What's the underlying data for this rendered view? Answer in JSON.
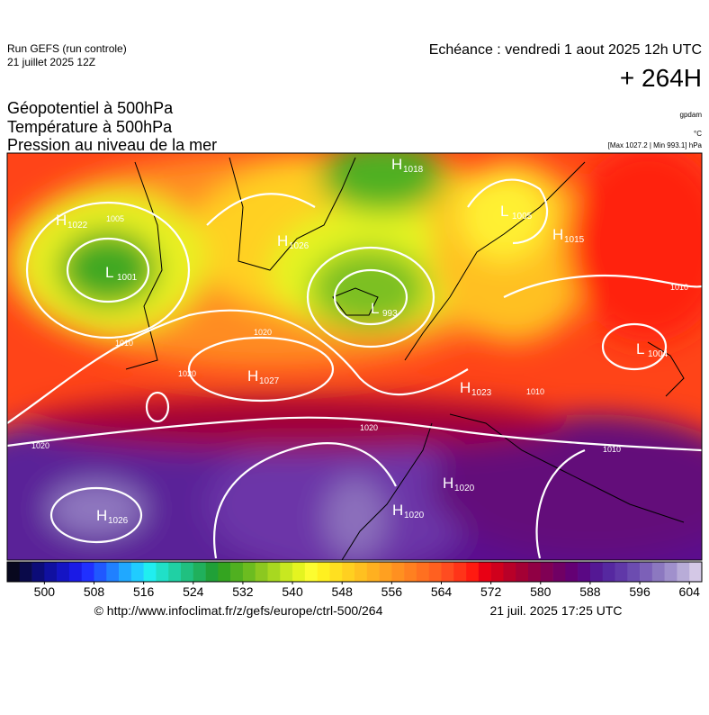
{
  "header": {
    "run": "Run GEFS (run controle)",
    "run_date": "21 juillet 2025 12Z",
    "valid_time": "Echéance : vendredi 1 aout 2025 12h UTC",
    "lead_time": "+ 264H",
    "field_1": "Géopotentiel à 500hPa",
    "field_2": "Température à 500hPa",
    "field_3": "Pression au niveau de la mer",
    "unit_1": "gpdam",
    "unit_2": "°C",
    "unit_3": "[Max 1027.2 | Min 993.1] hPa"
  },
  "map": {
    "pressure_centers": [
      {
        "type": "H",
        "value": 1018
      },
      {
        "type": "H",
        "value": 1022
      },
      {
        "type": "L",
        "value": 1001
      },
      {
        "type": "H",
        "value": 1026
      },
      {
        "type": "L",
        "value": 993
      },
      {
        "type": "L",
        "value": 1005
      },
      {
        "type": "H",
        "value": 1015
      },
      {
        "type": "L",
        "value": 1004
      },
      {
        "type": "H",
        "value": 1027
      },
      {
        "type": "H",
        "value": 1023
      },
      {
        "type": "H",
        "value": 1020
      },
      {
        "type": "H",
        "value": 1020
      },
      {
        "type": "H",
        "value": 1026
      }
    ],
    "isobar_labels": [
      1010,
      1020,
      1020,
      1020,
      1020,
      1010,
      1010,
      1010,
      1005
    ]
  },
  "colorbar": {
    "lim": [
      494,
      606
    ],
    "ticks": [
      500,
      508,
      516,
      524,
      532,
      540,
      548,
      556,
      564,
      572,
      580,
      588,
      596,
      604
    ],
    "colors": [
      "#08081e",
      "#0a0a4a",
      "#0c0c78",
      "#1010a0",
      "#1414c4",
      "#1a1ae6",
      "#2030ff",
      "#2058ff",
      "#2080ff",
      "#20a8ff",
      "#20ccff",
      "#20eef0",
      "#20e0c8",
      "#20d0a4",
      "#20c080",
      "#20b05c",
      "#20a038",
      "#34a420",
      "#50b020",
      "#6cbc20",
      "#8cc820",
      "#a8d820",
      "#c8e820",
      "#e4f420",
      "#fcfc30",
      "#fff020",
      "#ffe020",
      "#ffd020",
      "#ffc020",
      "#ffb020",
      "#ffa020",
      "#ff9020",
      "#ff8020",
      "#ff7020",
      "#ff6020",
      "#ff4c20",
      "#ff3418",
      "#ff1a10",
      "#e80014",
      "#d0001c",
      "#b80028",
      "#a40034",
      "#900044",
      "#800054",
      "#700064",
      "#640074",
      "#5a0884",
      "#541894",
      "#5628a0",
      "#6038a8",
      "#6c4cb0",
      "#7c60b8",
      "#8c78c0",
      "#a090cc",
      "#b8acd8",
      "#d4c8e6"
    ]
  },
  "footer": {
    "source": "© http://www.infoclimat.fr/z/gefs/europe/ctrl-500/264",
    "generated": "21 juil. 2025 17:25 UTC"
  }
}
